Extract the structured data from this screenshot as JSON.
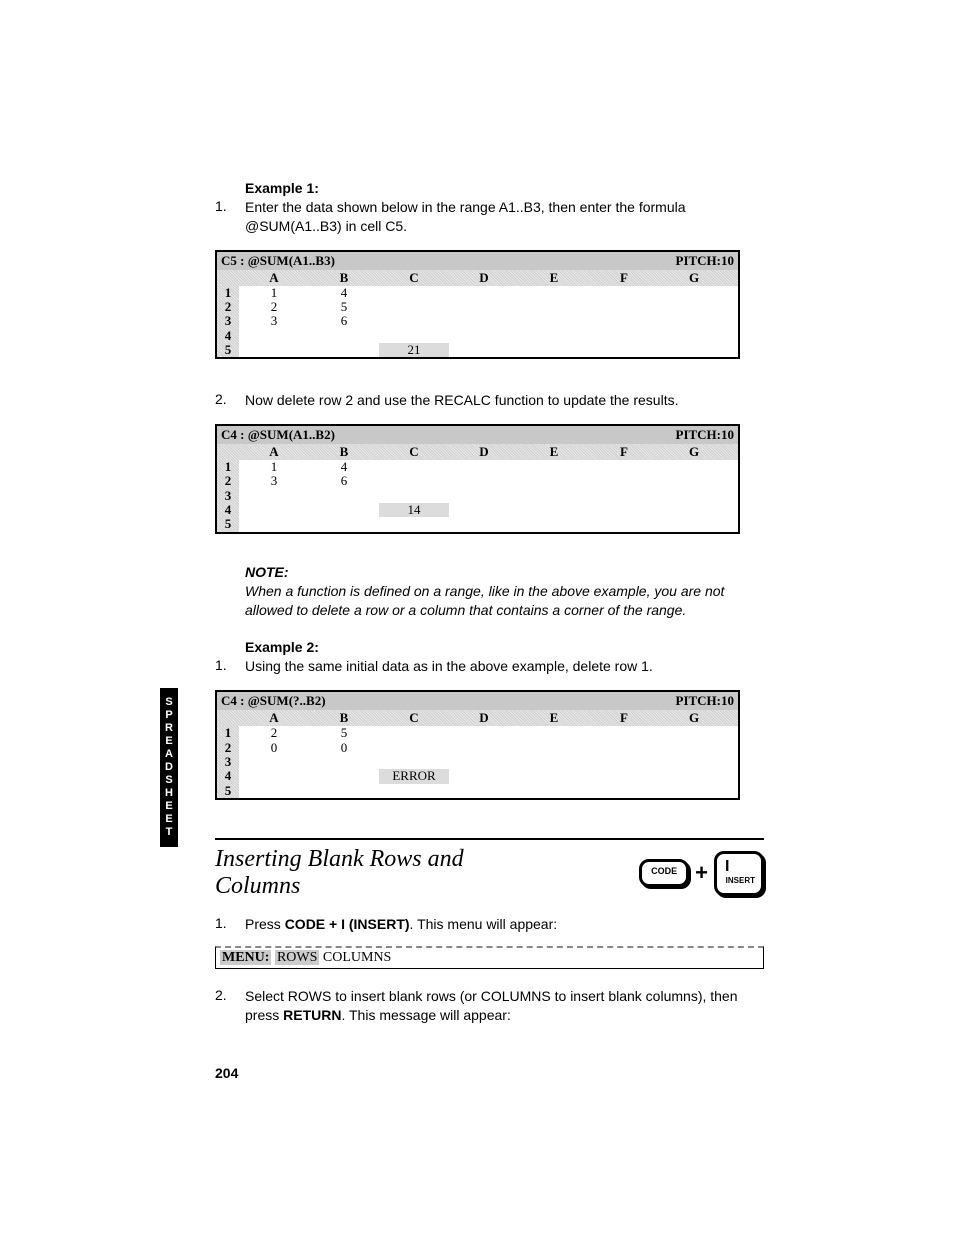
{
  "sideTab": "SPREADSHEET",
  "example1": {
    "heading": "Example 1:",
    "step1_num": "1.",
    "step1_text": "Enter the data shown below in the range A1..B3, then enter the formula @SUM(A1..B3) in cell C5."
  },
  "ss1": {
    "cellref": "C5 : @SUM(A1..B3)",
    "pitch": "PITCH:10",
    "cols": [
      "A",
      "B",
      "C",
      "D",
      "E",
      "F",
      "G"
    ],
    "rows": [
      {
        "n": "1",
        "cells": [
          "1",
          "4",
          "",
          "",
          "",
          "",
          ""
        ]
      },
      {
        "n": "2",
        "cells": [
          "2",
          "5",
          "",
          "",
          "",
          "",
          ""
        ]
      },
      {
        "n": "3",
        "cells": [
          "3",
          "6",
          "",
          "",
          "",
          "",
          ""
        ]
      },
      {
        "n": "4",
        "cells": [
          "",
          "",
          "",
          "",
          "",
          "",
          ""
        ]
      },
      {
        "n": "5",
        "cells": [
          "",
          "",
          "21",
          "",
          "",
          "",
          ""
        ],
        "hl": 2
      }
    ]
  },
  "step2": {
    "num": "2.",
    "text": "Now delete row 2 and use the RECALC function to update the results."
  },
  "ss2": {
    "cellref": "C4 : @SUM(A1..B2)",
    "pitch": "PITCH:10",
    "cols": [
      "A",
      "B",
      "C",
      "D",
      "E",
      "F",
      "G"
    ],
    "rows": [
      {
        "n": "1",
        "cells": [
          "1",
          "4",
          "",
          "",
          "",
          "",
          ""
        ]
      },
      {
        "n": "2",
        "cells": [
          "3",
          "6",
          "",
          "",
          "",
          "",
          ""
        ]
      },
      {
        "n": "3",
        "cells": [
          "",
          "",
          "",
          "",
          "",
          "",
          ""
        ]
      },
      {
        "n": "4",
        "cells": [
          "",
          "",
          "14",
          "",
          "",
          "",
          ""
        ],
        "hl": 2
      },
      {
        "n": "5",
        "cells": [
          "",
          "",
          "",
          "",
          "",
          "",
          ""
        ]
      }
    ]
  },
  "note": {
    "label": "NOTE:",
    "text": "When a function is defined on a range, like in the above example, you are not allowed to delete a row or a column that contains a corner of the range."
  },
  "example2": {
    "heading": "Example 2:",
    "step1_num": "1.",
    "step1_text": "Using the same initial data as in the above example, delete row 1."
  },
  "ss3": {
    "cellref": "C4 : @SUM(?..B2)",
    "pitch": "PITCH:10",
    "cols": [
      "A",
      "B",
      "C",
      "D",
      "E",
      "F",
      "G"
    ],
    "rows": [
      {
        "n": "1",
        "cells": [
          "2",
          "5",
          "",
          "",
          "",
          "",
          ""
        ]
      },
      {
        "n": "2",
        "cells": [
          "0",
          "0",
          "",
          "",
          "",
          "",
          ""
        ]
      },
      {
        "n": "3",
        "cells": [
          "",
          "",
          "",
          "",
          "",
          "",
          ""
        ]
      },
      {
        "n": "4",
        "cells": [
          "",
          "",
          "ERROR",
          "",
          "",
          "",
          ""
        ],
        "hl": 2
      },
      {
        "n": "5",
        "cells": [
          "",
          "",
          "",
          "",
          "",
          "",
          ""
        ]
      }
    ]
  },
  "section": {
    "title": "Inserting Blank Rows and Columns",
    "key1_label": "CODE",
    "plus": "+",
    "key2_top": "I",
    "key2_bot": "INSERT"
  },
  "sstep1": {
    "num": "1.",
    "pre": "Press ",
    "bold": "CODE + I (INSERT)",
    "post": ". This menu will appear:"
  },
  "menu": {
    "label": "MENU:",
    "sel": "ROWS",
    "rest": " COLUMNS"
  },
  "sstep2": {
    "num": "2.",
    "pre": "Select ROWS to insert blank rows (or COLUMNS to insert blank columns), then press ",
    "bold": "RETURN",
    "post": ". This message will appear:"
  },
  "pageNum": "204"
}
